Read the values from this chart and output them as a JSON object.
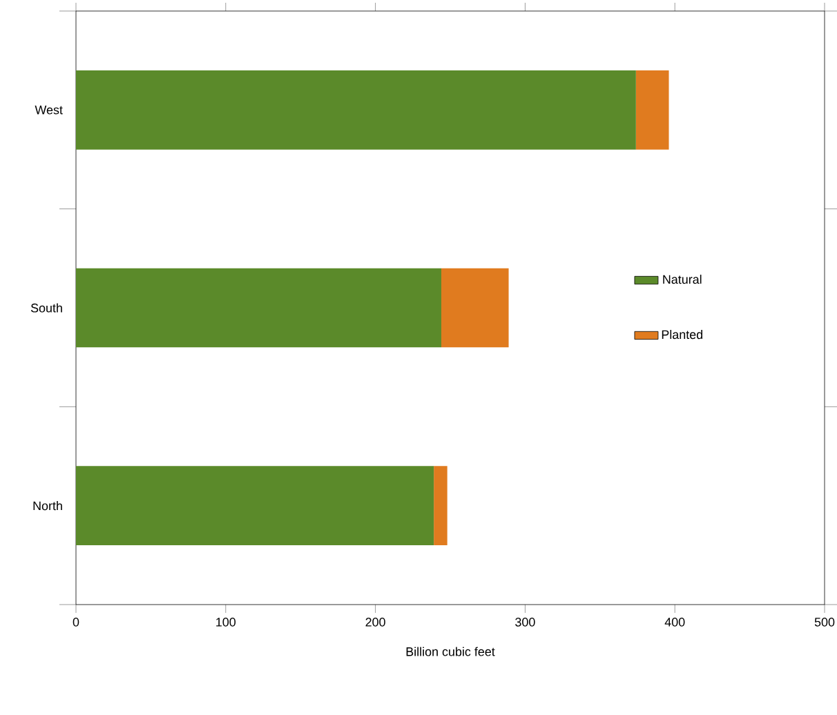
{
  "chart_data": {
    "type": "bar",
    "orientation": "horizontal",
    "stacked": true,
    "categories": [
      "West",
      "South",
      "North"
    ],
    "series": [
      {
        "name": "Natural",
        "color": "#5b8a2a",
        "values": [
          374,
          244,
          239
        ]
      },
      {
        "name": "Planted",
        "color": "#e07b1f",
        "values": [
          22,
          45,
          9
        ]
      }
    ],
    "xlabel": "Billion cubic feet",
    "xlim": [
      0,
      500
    ],
    "xticks": [
      0,
      100,
      200,
      300,
      400,
      500
    ],
    "legend": "right",
    "grid": false
  }
}
